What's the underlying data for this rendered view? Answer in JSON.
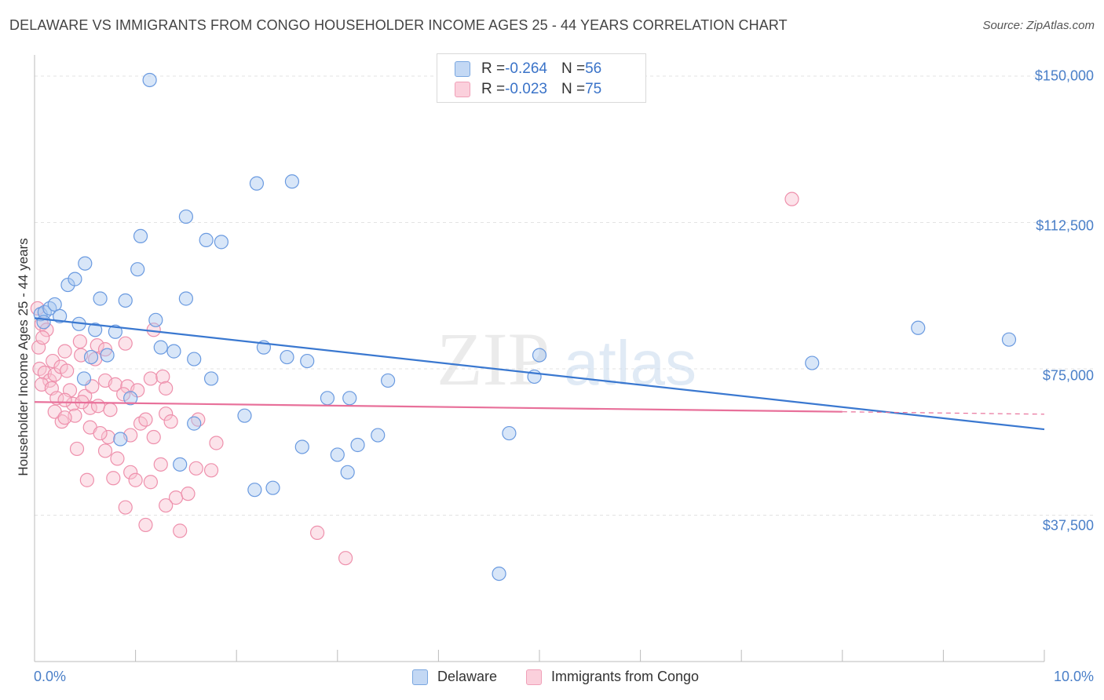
{
  "title": "DELAWARE VS IMMIGRANTS FROM CONGO HOUSEHOLDER INCOME AGES 25 - 44 YEARS CORRELATION CHART",
  "source": "Source: ZipAtlas.com",
  "watermark": {
    "zip": "ZIP",
    "atlas": "atlas"
  },
  "legend": {
    "rows": [
      {
        "r_label": "R = ",
        "r_value": "-0.264",
        "n_label": "N = ",
        "n_value": "56",
        "color": "#7aa7e0"
      },
      {
        "r_label": "R = ",
        "r_value": "-0.023",
        "n_label": "N = ",
        "n_value": "75",
        "color": "#f0a0b8"
      }
    ]
  },
  "bottom_legend": [
    "Delaware",
    "Immigrants from Congo"
  ],
  "colors": {
    "delaware_fill": "#a9c8f0",
    "delaware_stroke": "#6a9ae0",
    "delaware_line": "#3a78d0",
    "congo_fill": "#f8c0d0",
    "congo_stroke": "#ee90ac",
    "congo_line": "#e8709a",
    "axis_text": "#4a7fc8",
    "grid": "#e3e3e3"
  },
  "chart_data": {
    "type": "scatter",
    "ylabel": "Householder Income Ages 25 - 44 years",
    "xlabel": "",
    "x_tick_labels": [
      "0.0%",
      "10.0%"
    ],
    "y_tick_labels": [
      "$150,000",
      "$112,500",
      "$75,000",
      "$37,500"
    ],
    "y_ticks": [
      150000,
      112500,
      75000,
      37500
    ],
    "xlim": [
      0,
      10
    ],
    "ylim": [
      0,
      155000
    ],
    "grid": true,
    "legend_position": "top-center",
    "series": [
      {
        "name": "Delaware",
        "r": -0.264,
        "n": 56,
        "trend": {
          "x": [
            0,
            10
          ],
          "y": [
            88000,
            59500
          ]
        },
        "points": [
          [
            0.06,
            89000
          ],
          [
            0.1,
            89500
          ],
          [
            0.15,
            90500
          ],
          [
            0.2,
            91500
          ],
          [
            0.25,
            88500
          ],
          [
            0.09,
            87000
          ],
          [
            1.14,
            149000
          ],
          [
            0.5,
            102000
          ],
          [
            0.33,
            96500
          ],
          [
            0.4,
            98000
          ],
          [
            0.65,
            93000
          ],
          [
            0.9,
            92500
          ],
          [
            1.05,
            109000
          ],
          [
            1.02,
            100500
          ],
          [
            1.5,
            114000
          ],
          [
            1.7,
            108000
          ],
          [
            1.85,
            107500
          ],
          [
            1.5,
            93000
          ],
          [
            2.2,
            122500
          ],
          [
            2.55,
            123000
          ],
          [
            1.2,
            87500
          ],
          [
            0.44,
            86500
          ],
          [
            0.6,
            85000
          ],
          [
            0.8,
            84500
          ],
          [
            1.25,
            80500
          ],
          [
            1.38,
            79500
          ],
          [
            1.58,
            77500
          ],
          [
            2.27,
            80500
          ],
          [
            2.5,
            78000
          ],
          [
            2.7,
            77000
          ],
          [
            0.56,
            78000
          ],
          [
            0.72,
            78500
          ],
          [
            1.75,
            72500
          ],
          [
            0.49,
            72500
          ],
          [
            0.95,
            67500
          ],
          [
            2.9,
            67500
          ],
          [
            3.12,
            67500
          ],
          [
            3.5,
            72000
          ],
          [
            4.95,
            73000
          ],
          [
            5.0,
            78500
          ],
          [
            7.7,
            76500
          ],
          [
            8.75,
            85500
          ],
          [
            9.65,
            82500
          ],
          [
            2.08,
            63000
          ],
          [
            1.58,
            61000
          ],
          [
            0.85,
            57000
          ],
          [
            3.4,
            58000
          ],
          [
            4.7,
            58500
          ],
          [
            2.65,
            55000
          ],
          [
            3.0,
            53000
          ],
          [
            3.2,
            55500
          ],
          [
            1.44,
            50500
          ],
          [
            3.1,
            48500
          ],
          [
            2.18,
            44000
          ],
          [
            2.36,
            44500
          ],
          [
            4.6,
            22500
          ]
        ]
      },
      {
        "name": "Immigrants from Congo",
        "r": -0.023,
        "n": 75,
        "trend": {
          "x": [
            0,
            8
          ],
          "y": [
            66500,
            64000
          ]
        },
        "points": [
          [
            0.03,
            90500
          ],
          [
            0.07,
            86500
          ],
          [
            0.12,
            85000
          ],
          [
            0.04,
            80500
          ],
          [
            0.18,
            77000
          ],
          [
            0.3,
            79500
          ],
          [
            0.45,
            82000
          ],
          [
            0.62,
            81000
          ],
          [
            0.7,
            80000
          ],
          [
            0.9,
            81500
          ],
          [
            0.46,
            78500
          ],
          [
            0.6,
            77500
          ],
          [
            0.05,
            75000
          ],
          [
            0.1,
            74000
          ],
          [
            0.15,
            72000
          ],
          [
            0.2,
            73500
          ],
          [
            0.26,
            75500
          ],
          [
            0.32,
            74500
          ],
          [
            0.07,
            71000
          ],
          [
            0.17,
            70000
          ],
          [
            0.35,
            69500
          ],
          [
            0.5,
            68000
          ],
          [
            0.57,
            70500
          ],
          [
            0.7,
            72000
          ],
          [
            0.8,
            71000
          ],
          [
            0.92,
            70500
          ],
          [
            1.02,
            69500
          ],
          [
            0.88,
            68500
          ],
          [
            1.15,
            72500
          ],
          [
            1.27,
            73000
          ],
          [
            0.22,
            67500
          ],
          [
            0.38,
            66000
          ],
          [
            0.55,
            65000
          ],
          [
            0.63,
            65500
          ],
          [
            0.75,
            64500
          ],
          [
            0.4,
            63000
          ],
          [
            0.27,
            61500
          ],
          [
            1.18,
            85000
          ],
          [
            1.3,
            70000
          ],
          [
            0.3,
            67000
          ],
          [
            0.47,
            66500
          ],
          [
            1.05,
            61000
          ],
          [
            1.3,
            63500
          ],
          [
            1.1,
            62000
          ],
          [
            1.35,
            61500
          ],
          [
            0.73,
            57500
          ],
          [
            0.95,
            58000
          ],
          [
            1.18,
            57500
          ],
          [
            1.8,
            56000
          ],
          [
            0.42,
            54500
          ],
          [
            0.7,
            54000
          ],
          [
            0.82,
            52000
          ],
          [
            1.25,
            50500
          ],
          [
            1.6,
            49500
          ],
          [
            1.75,
            49000
          ],
          [
            0.95,
            48500
          ],
          [
            0.52,
            46500
          ],
          [
            0.78,
            47000
          ],
          [
            1.0,
            46500
          ],
          [
            1.15,
            46000
          ],
          [
            1.4,
            42000
          ],
          [
            1.52,
            43000
          ],
          [
            1.3,
            40000
          ],
          [
            0.9,
            39500
          ],
          [
            1.1,
            35000
          ],
          [
            1.44,
            33500
          ],
          [
            2.8,
            33000
          ],
          [
            3.08,
            26500
          ],
          [
            7.5,
            118500
          ],
          [
            0.08,
            83000
          ],
          [
            0.2,
            64000
          ],
          [
            1.62,
            62000
          ],
          [
            0.3,
            62500
          ],
          [
            0.55,
            60000
          ],
          [
            0.65,
            58500
          ]
        ]
      }
    ]
  }
}
